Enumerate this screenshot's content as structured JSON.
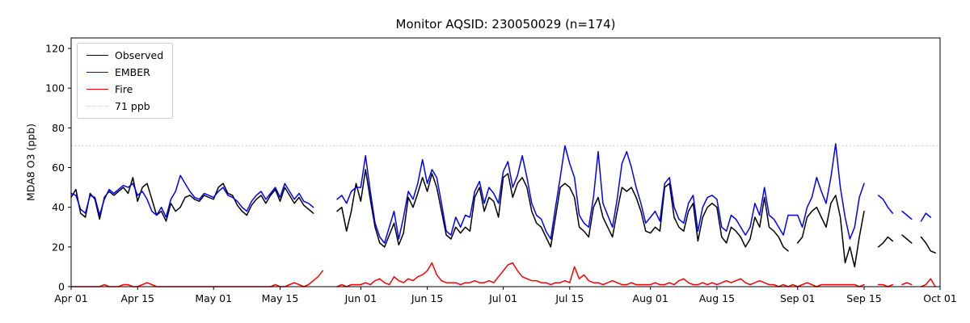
{
  "figure": {
    "title": "Monitor AQSID: 230050029 (n=174)",
    "monitor_aqsid": "230050029",
    "n": 174
  },
  "chart_data": {
    "type": "line",
    "title": "Monitor AQSID: 230050029 (n=174)",
    "xlabel": "",
    "ylabel": "MDA8 O3 (ppb)",
    "ylim": [
      0,
      125.3
    ],
    "x_unit": "day index from Apr 01 (daily values, Apr 01 = 0, Oct 01 = 183)",
    "x_start_label": "Apr 01",
    "x_end_label": "Oct 01",
    "xtick_days": [
      0,
      14,
      30,
      44,
      61,
      75,
      91,
      105,
      122,
      136,
      153,
      167,
      183
    ],
    "xtick_labels": [
      "Apr 01",
      "Apr 15",
      "May 01",
      "May 15",
      "Jun 01",
      "Jun 15",
      "Jul 01",
      "Jul 15",
      "Aug 01",
      "Aug 15",
      "Sep 01",
      "Sep 15",
      "Oct 01"
    ],
    "yticks": [
      0,
      20,
      40,
      60,
      80,
      100,
      120
    ],
    "grid": false,
    "legend_position": "upper left",
    "threshold": {
      "value": 71,
      "label": "71 ppb",
      "color": "#cfcfcf",
      "style": "dotted"
    },
    "series": [
      {
        "name": "Observed",
        "color": "#000000",
        "values": [
          45,
          49,
          37,
          35,
          47,
          44,
          34,
          45,
          48,
          46,
          48,
          50,
          47,
          55,
          43,
          50,
          52,
          44,
          36,
          38,
          33,
          42,
          38,
          40,
          45,
          46,
          44,
          43,
          46,
          45,
          44,
          50,
          52,
          47,
          46,
          41,
          38,
          36,
          41,
          44,
          46,
          42,
          46,
          49,
          43,
          50,
          46,
          42,
          45,
          41,
          39,
          37,
          null,
          null,
          null,
          null,
          38,
          40,
          28,
          38,
          52,
          43,
          59,
          44,
          30,
          22,
          20,
          26,
          32,
          21,
          27,
          45,
          40,
          47,
          55,
          48,
          57,
          50,
          38,
          26,
          24,
          30,
          27,
          30,
          28,
          45,
          50,
          38,
          45,
          43,
          35,
          55,
          57,
          45,
          52,
          55,
          50,
          38,
          32,
          30,
          25,
          20,
          35,
          50,
          52,
          50,
          45,
          30,
          28,
          25,
          40,
          45,
          35,
          30,
          25,
          38,
          50,
          48,
          50,
          45,
          38,
          28,
          27,
          30,
          28,
          50,
          52,
          35,
          30,
          28,
          38,
          42,
          23,
          35,
          40,
          42,
          40,
          25,
          22,
          30,
          28,
          25,
          20,
          24,
          35,
          30,
          45,
          30,
          28,
          25,
          20,
          18,
          null,
          22,
          25,
          35,
          38,
          40,
          35,
          30,
          42,
          46,
          35,
          12,
          20,
          10,
          25,
          38,
          null,
          null,
          20,
          22,
          25,
          23,
          null,
          26,
          24,
          22,
          null,
          25,
          22,
          18,
          17
        ]
      },
      {
        "name": "EMBER",
        "color": "#0000ff",
        "values": [
          47,
          46,
          39,
          37,
          46,
          45,
          36,
          44,
          49,
          47,
          49,
          51,
          50,
          52,
          46,
          48,
          44,
          38,
          36,
          40,
          35,
          44,
          48,
          56,
          52,
          48,
          45,
          44,
          47,
          46,
          45,
          48,
          50,
          46,
          45,
          43,
          40,
          38,
          43,
          46,
          48,
          44,
          47,
          50,
          45,
          52,
          48,
          44,
          47,
          43,
          42,
          40,
          null,
          null,
          null,
          null,
          44,
          46,
          42,
          48,
          50,
          50,
          66,
          48,
          32,
          25,
          22,
          30,
          38,
          24,
          35,
          48,
          44,
          52,
          64,
          52,
          59,
          55,
          42,
          28,
          26,
          35,
          30,
          36,
          35,
          48,
          53,
          42,
          50,
          47,
          42,
          58,
          63,
          50,
          56,
          66,
          55,
          42,
          36,
          34,
          28,
          24,
          40,
          55,
          71,
          62,
          55,
          36,
          32,
          30,
          45,
          68,
          42,
          36,
          30,
          44,
          62,
          68,
          60,
          50,
          42,
          32,
          35,
          38,
          33,
          52,
          55,
          40,
          34,
          32,
          42,
          46,
          28,
          40,
          45,
          46,
          44,
          30,
          28,
          36,
          34,
          30,
          26,
          30,
          42,
          36,
          50,
          36,
          34,
          30,
          26,
          36,
          36,
          36,
          30,
          40,
          45,
          55,
          48,
          42,
          55,
          72,
          50,
          35,
          24,
          30,
          45,
          52,
          null,
          null,
          46,
          44,
          40,
          37,
          null,
          38,
          36,
          34,
          null,
          33,
          37,
          35,
          null
        ]
      },
      {
        "name": "Fire",
        "color": "#ff0000",
        "values": [
          0,
          0,
          0,
          0,
          0,
          0,
          0,
          1,
          0,
          0,
          0,
          1,
          1,
          0,
          0,
          1,
          2,
          1,
          0,
          0,
          0,
          0,
          0,
          0,
          0,
          0,
          0,
          0,
          0,
          0,
          0,
          0,
          0,
          0,
          0,
          0,
          0,
          0,
          0,
          0,
          0,
          0,
          0,
          1,
          0,
          0,
          1,
          2,
          1,
          0,
          1,
          3,
          5,
          8,
          null,
          null,
          0,
          1,
          0,
          1,
          1,
          1,
          2,
          1,
          3,
          4,
          2,
          1,
          5,
          3,
          2,
          4,
          3,
          5,
          6,
          8,
          12,
          6,
          3,
          2,
          2,
          2,
          1,
          2,
          2,
          3,
          2,
          2,
          3,
          2,
          5,
          8,
          11,
          12,
          8,
          5,
          4,
          3,
          3,
          2,
          2,
          1,
          2,
          2,
          3,
          2,
          10,
          4,
          6,
          3,
          2,
          2,
          1,
          2,
          3,
          2,
          1,
          1,
          2,
          1,
          1,
          1,
          1,
          2,
          1,
          1,
          2,
          1,
          3,
          4,
          2,
          1,
          1,
          2,
          1,
          2,
          1,
          2,
          3,
          2,
          3,
          4,
          2,
          1,
          2,
          3,
          2,
          1,
          1,
          0,
          1,
          0,
          1,
          0,
          1,
          2,
          1,
          0,
          1,
          1,
          1,
          1,
          1,
          1,
          1,
          1,
          0,
          1,
          null,
          null,
          1,
          1,
          0,
          1,
          null,
          1,
          2,
          1,
          null,
          0,
          1,
          4,
          0
        ]
      }
    ]
  },
  "legend": {
    "entries": [
      "Observed",
      "EMBER",
      "Fire",
      "71 ppb"
    ]
  }
}
